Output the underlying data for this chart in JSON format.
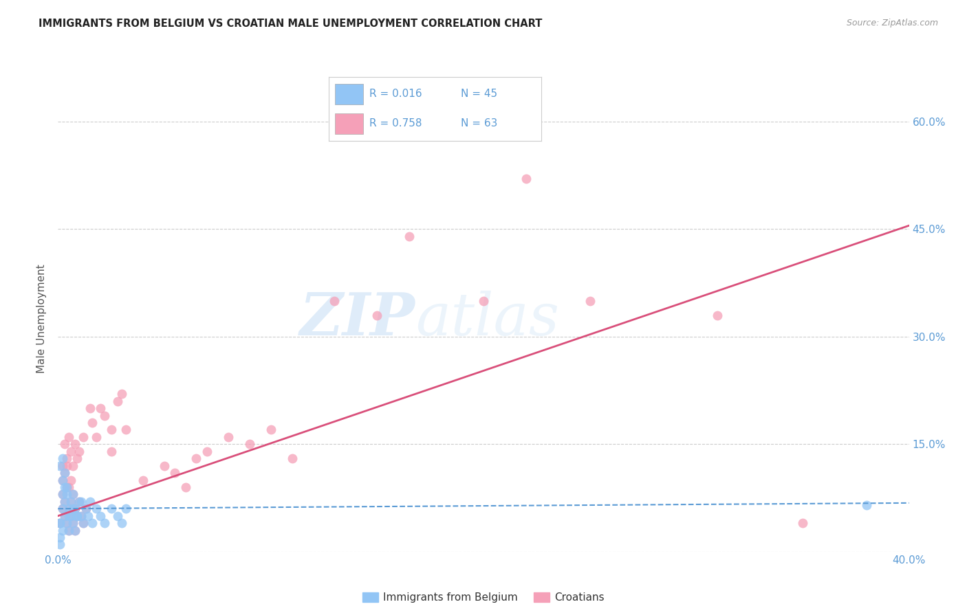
{
  "title": "IMMIGRANTS FROM BELGIUM VS CROATIAN MALE UNEMPLOYMENT CORRELATION CHART",
  "source": "Source: ZipAtlas.com",
  "ylabel": "Male Unemployment",
  "xlim": [
    0.0,
    0.4
  ],
  "ylim": [
    0.0,
    0.65
  ],
  "yticks": [
    0.0,
    0.15,
    0.3,
    0.45,
    0.6
  ],
  "xticks": [
    0.0,
    0.1,
    0.2,
    0.3,
    0.4
  ],
  "color_blue": "#92c5f5",
  "color_pink": "#f5a0b8",
  "color_line_blue": "#5b9bd5",
  "color_line_pink": "#d94f7a",
  "watermark_zip": "ZIP",
  "watermark_atlas": "atlas",
  "legend_label1": "Immigrants from Belgium",
  "legend_label2": "Croatians",
  "belgium_x": [
    0.001,
    0.002,
    0.002,
    0.003,
    0.003,
    0.004,
    0.004,
    0.005,
    0.005,
    0.006,
    0.006,
    0.007,
    0.007,
    0.008,
    0.008,
    0.009,
    0.01,
    0.011,
    0.012,
    0.013,
    0.014,
    0.015,
    0.016,
    0.018,
    0.02,
    0.022,
    0.025,
    0.028,
    0.03,
    0.032,
    0.001,
    0.002,
    0.003,
    0.004,
    0.002,
    0.003,
    0.005,
    0.007,
    0.009,
    0.011,
    0.001,
    0.001,
    0.002,
    0.001,
    0.38
  ],
  "belgium_y": [
    0.04,
    0.06,
    0.08,
    0.05,
    0.07,
    0.04,
    0.09,
    0.06,
    0.03,
    0.07,
    0.05,
    0.08,
    0.04,
    0.06,
    0.03,
    0.05,
    0.07,
    0.05,
    0.04,
    0.06,
    0.05,
    0.07,
    0.04,
    0.06,
    0.05,
    0.04,
    0.06,
    0.05,
    0.04,
    0.06,
    0.12,
    0.1,
    0.11,
    0.08,
    0.13,
    0.09,
    0.05,
    0.06,
    0.05,
    0.07,
    0.02,
    0.01,
    0.03,
    0.04,
    0.065
  ],
  "croatian_x": [
    0.001,
    0.002,
    0.002,
    0.003,
    0.003,
    0.004,
    0.004,
    0.005,
    0.005,
    0.006,
    0.006,
    0.007,
    0.007,
    0.008,
    0.008,
    0.009,
    0.01,
    0.011,
    0.012,
    0.013,
    0.015,
    0.016,
    0.018,
    0.02,
    0.022,
    0.025,
    0.025,
    0.028,
    0.03,
    0.032,
    0.002,
    0.003,
    0.004,
    0.005,
    0.006,
    0.007,
    0.008,
    0.009,
    0.01,
    0.012,
    0.002,
    0.003,
    0.004,
    0.005,
    0.006,
    0.04,
    0.05,
    0.055,
    0.06,
    0.065,
    0.07,
    0.08,
    0.09,
    0.1,
    0.11,
    0.13,
    0.15,
    0.165,
    0.2,
    0.22,
    0.25,
    0.31,
    0.35
  ],
  "croatian_y": [
    0.04,
    0.06,
    0.08,
    0.05,
    0.07,
    0.04,
    0.09,
    0.06,
    0.03,
    0.07,
    0.05,
    0.08,
    0.04,
    0.06,
    0.03,
    0.05,
    0.07,
    0.05,
    0.04,
    0.06,
    0.2,
    0.18,
    0.16,
    0.2,
    0.19,
    0.17,
    0.14,
    0.21,
    0.22,
    0.17,
    0.12,
    0.15,
    0.13,
    0.16,
    0.14,
    0.12,
    0.15,
    0.13,
    0.14,
    0.16,
    0.1,
    0.11,
    0.12,
    0.09,
    0.1,
    0.1,
    0.12,
    0.11,
    0.09,
    0.13,
    0.14,
    0.16,
    0.15,
    0.17,
    0.13,
    0.35,
    0.33,
    0.44,
    0.35,
    0.52,
    0.35,
    0.33,
    0.04
  ],
  "pink_line_x0": 0.0,
  "pink_line_y0": 0.05,
  "pink_line_x1": 0.4,
  "pink_line_y1": 0.455,
  "blue_line_x0": 0.0,
  "blue_line_y0": 0.06,
  "blue_line_x1": 0.4,
  "blue_line_y1": 0.068
}
